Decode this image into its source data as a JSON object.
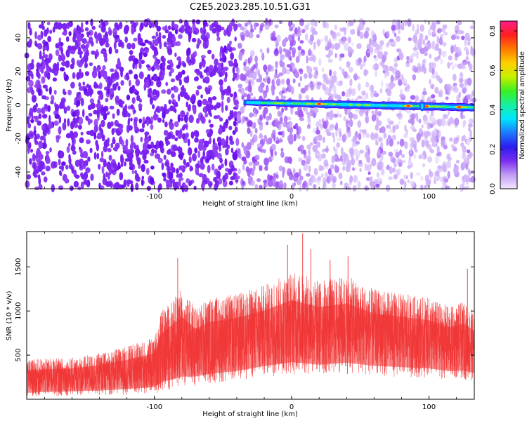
{
  "title": "C2E5.2023.285.10.51.G31",
  "chart_data": [
    {
      "type": "heatmap",
      "xlabel": "Height of straight line (km)",
      "ylabel": "Frequency (Hz)",
      "xlim": [
        -193,
        133
      ],
      "ylim": [
        -50,
        50
      ],
      "xticks": [
        -100,
        0,
        100
      ],
      "yticks": [
        -40,
        -20,
        0,
        20,
        40
      ],
      "colorbar": {
        "label": "Normalized spectral amplitude",
        "range": [
          0,
          0.85
        ],
        "ticks": [
          0.0,
          0.2,
          0.4,
          0.6,
          0.8
        ],
        "colors": [
          "#f3e6ff",
          "#c19cf5",
          "#7b2cf0",
          "#2a1df0",
          "#1e78ff",
          "#00e5ff",
          "#18f0a0",
          "#39f020",
          "#c8f000",
          "#ffd000",
          "#ff7a00",
          "#ff1f1f",
          "#ff1c8a"
        ]
      },
      "signal_trace": {
        "onset_km": -35,
        "end_km": 133,
        "frequency_start_hz": 1.5,
        "frequency_end_hz": -1.5,
        "peak_km": [
          20,
          85,
          98,
          122
        ]
      }
    },
    {
      "type": "line",
      "xlabel": "Height of straight line (km)",
      "ylabel": "SNR (10 * v/v)",
      "xlim": [
        -193,
        133
      ],
      "ylim": [
        0,
        1900
      ],
      "xticks": [
        -100,
        0,
        100
      ],
      "yticks": [
        500,
        1000,
        1500
      ],
      "color": "#f03030",
      "envelope": {
        "x": [
          -193,
          -180,
          -160,
          -140,
          -120,
          -100,
          -95,
          -80,
          -70,
          -60,
          -40,
          -20,
          0,
          20,
          40,
          60,
          80,
          100,
          115,
          125,
          133
        ],
        "upper": [
          450,
          460,
          470,
          520,
          600,
          700,
          1000,
          1250,
          1050,
          1150,
          1200,
          1300,
          1450,
          1350,
          1400,
          1250,
          1200,
          1150,
          1050,
          1100,
          1000
        ],
        "lower": [
          20,
          30,
          40,
          40,
          50,
          60,
          80,
          120,
          150,
          170,
          200,
          250,
          280,
          260,
          280,
          260,
          250,
          240,
          220,
          220,
          200
        ]
      },
      "peaks": [
        {
          "x": 8,
          "y": 1880
        },
        {
          "x": -3,
          "y": 1750
        },
        {
          "x": 14,
          "y": 1700
        },
        {
          "x": -83,
          "y": 1600
        },
        {
          "x": 28,
          "y": 1580
        },
        {
          "x": 41,
          "y": 1620
        },
        {
          "x": 128,
          "y": 1480
        }
      ]
    }
  ]
}
